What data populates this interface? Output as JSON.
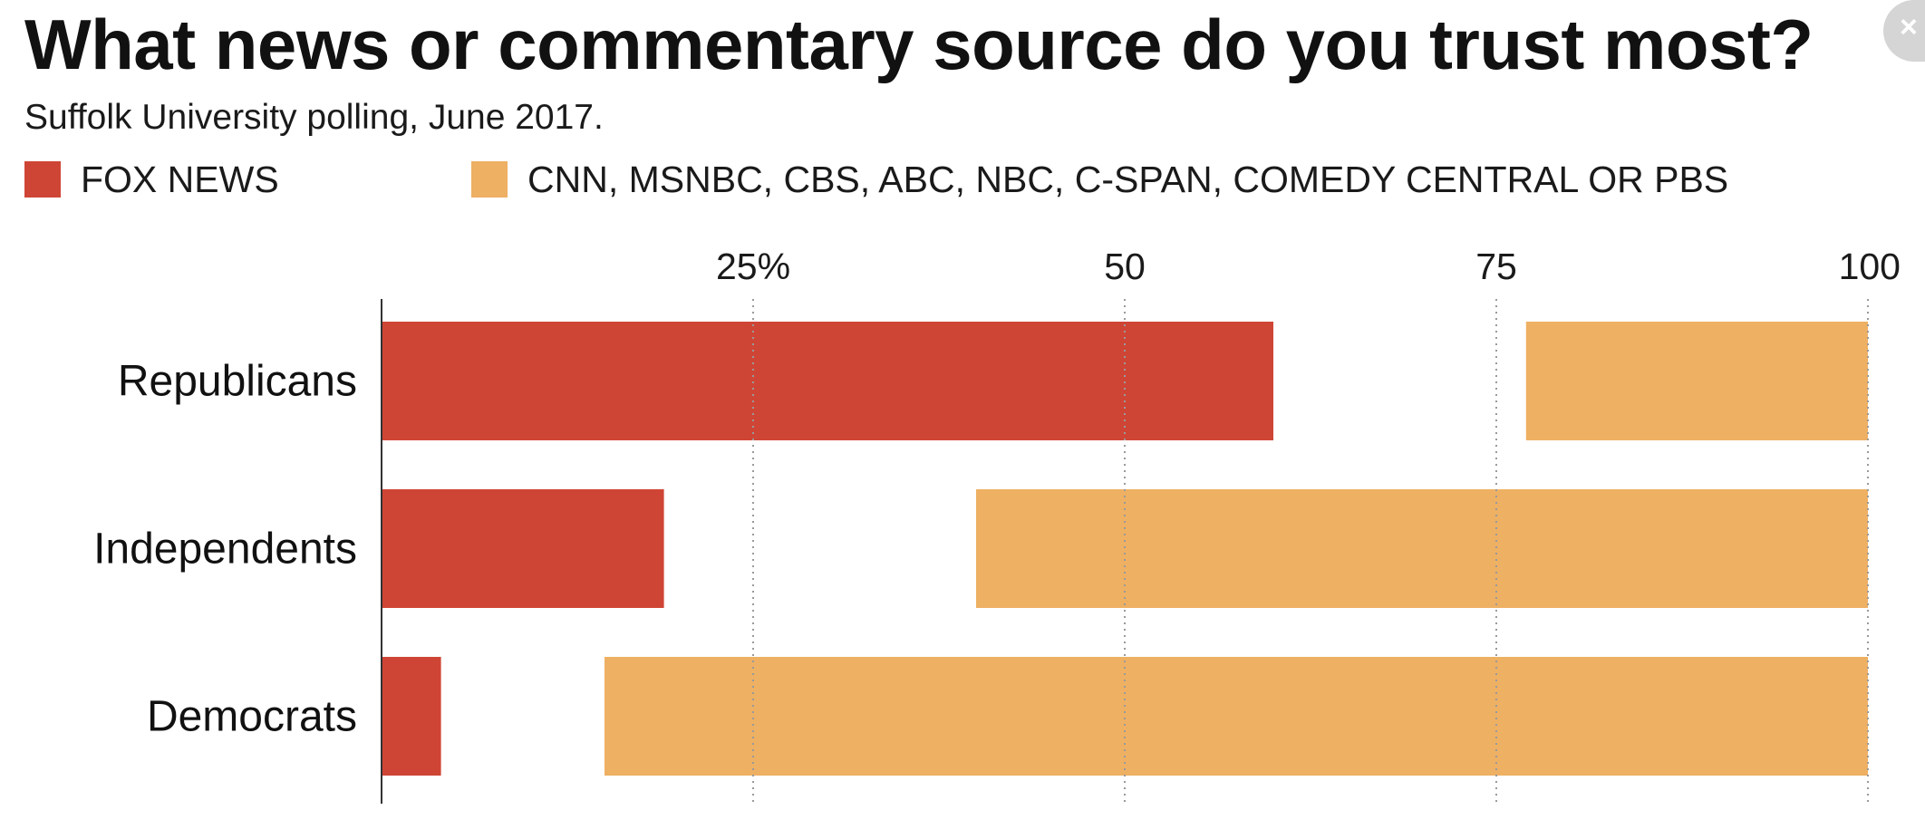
{
  "header": {
    "title": "What news or commentary source do you trust most?",
    "subtitle": "Suffolk University polling, June 2017."
  },
  "close_button": {
    "icon": "close-icon",
    "glyph": "×"
  },
  "chart_data": {
    "type": "bar",
    "orientation": "horizontal",
    "title": "What news or commentary source do you trust most?",
    "subtitle": "Suffolk University polling, June 2017.",
    "categories": [
      "Republicans",
      "Independents",
      "Democrats"
    ],
    "series": [
      {
        "name": "FOX NEWS",
        "color": "#cf4535",
        "anchor": "left",
        "values": [
          60,
          19,
          4
        ]
      },
      {
        "name": "CNN, MSNBC, CBS, ABC, NBC, C-SPAN, COMEDY CENTRAL OR PBS",
        "color": "#eeb063",
        "anchor": "right",
        "values": [
          23,
          60,
          85
        ]
      }
    ],
    "xlim": [
      0,
      100
    ],
    "xticks": [
      {
        "value": 25,
        "label": "25%"
      },
      {
        "value": 50,
        "label": "50"
      },
      {
        "value": 75,
        "label": "75"
      },
      {
        "value": 100,
        "label": "100"
      }
    ],
    "grid": "dotted vertical",
    "legend_position": "top-left"
  }
}
